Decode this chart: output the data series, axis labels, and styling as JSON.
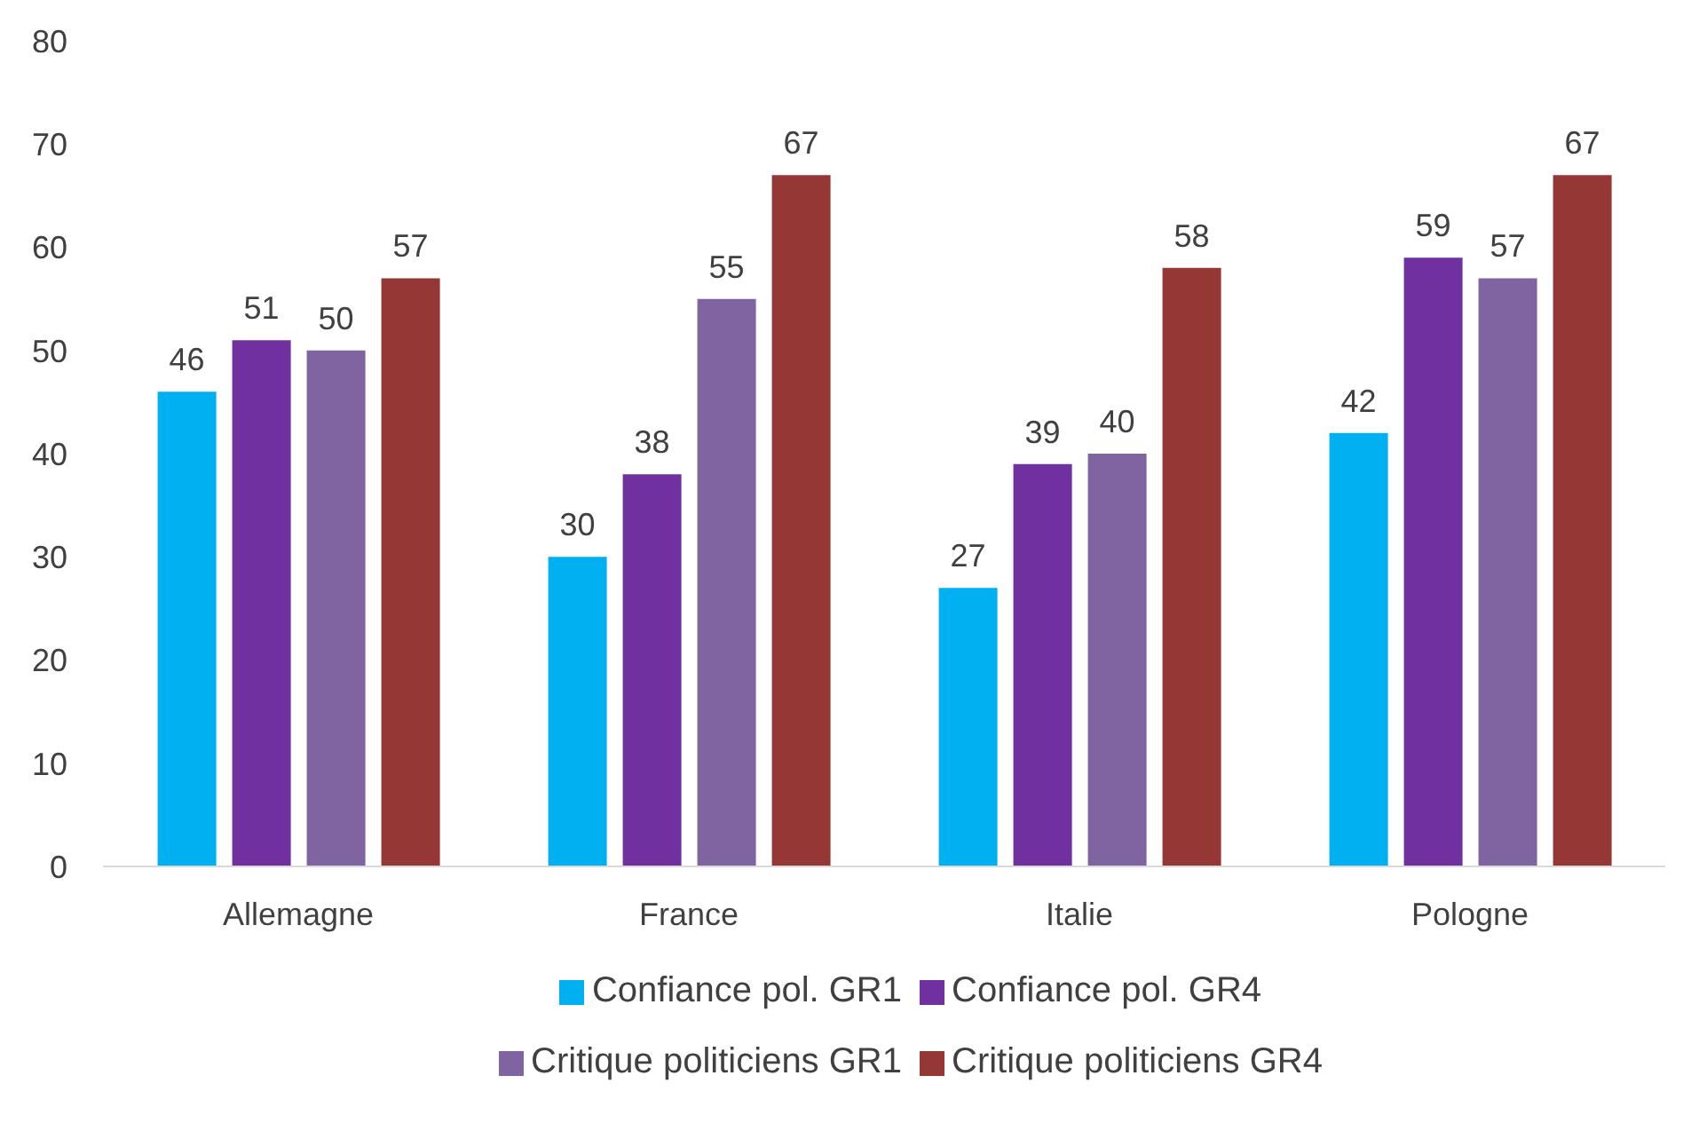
{
  "chart_data": {
    "type": "bar",
    "categories": [
      "Allemagne",
      "France",
      "Italie",
      "Pologne"
    ],
    "series": [
      {
        "name": "Confiance pol. GR1",
        "color": "#00b0f0",
        "values": [
          46,
          30,
          27,
          42
        ]
      },
      {
        "name": "Confiance pol. GR4",
        "color": "#7030a0",
        "values": [
          51,
          38,
          39,
          59
        ]
      },
      {
        "name": "Critique politiciens GR1",
        "color": "#8064a2",
        "values": [
          50,
          55,
          40,
          57
        ]
      },
      {
        "name": "Critique politiciens GR4",
        "color": "#953735",
        "values": [
          57,
          67,
          58,
          67
        ]
      }
    ],
    "ylim": [
      0,
      80
    ],
    "yticks": [
      0,
      10,
      20,
      30,
      40,
      50,
      60,
      70,
      80
    ],
    "grid": false,
    "legend": "bottom",
    "data_labels": true
  }
}
